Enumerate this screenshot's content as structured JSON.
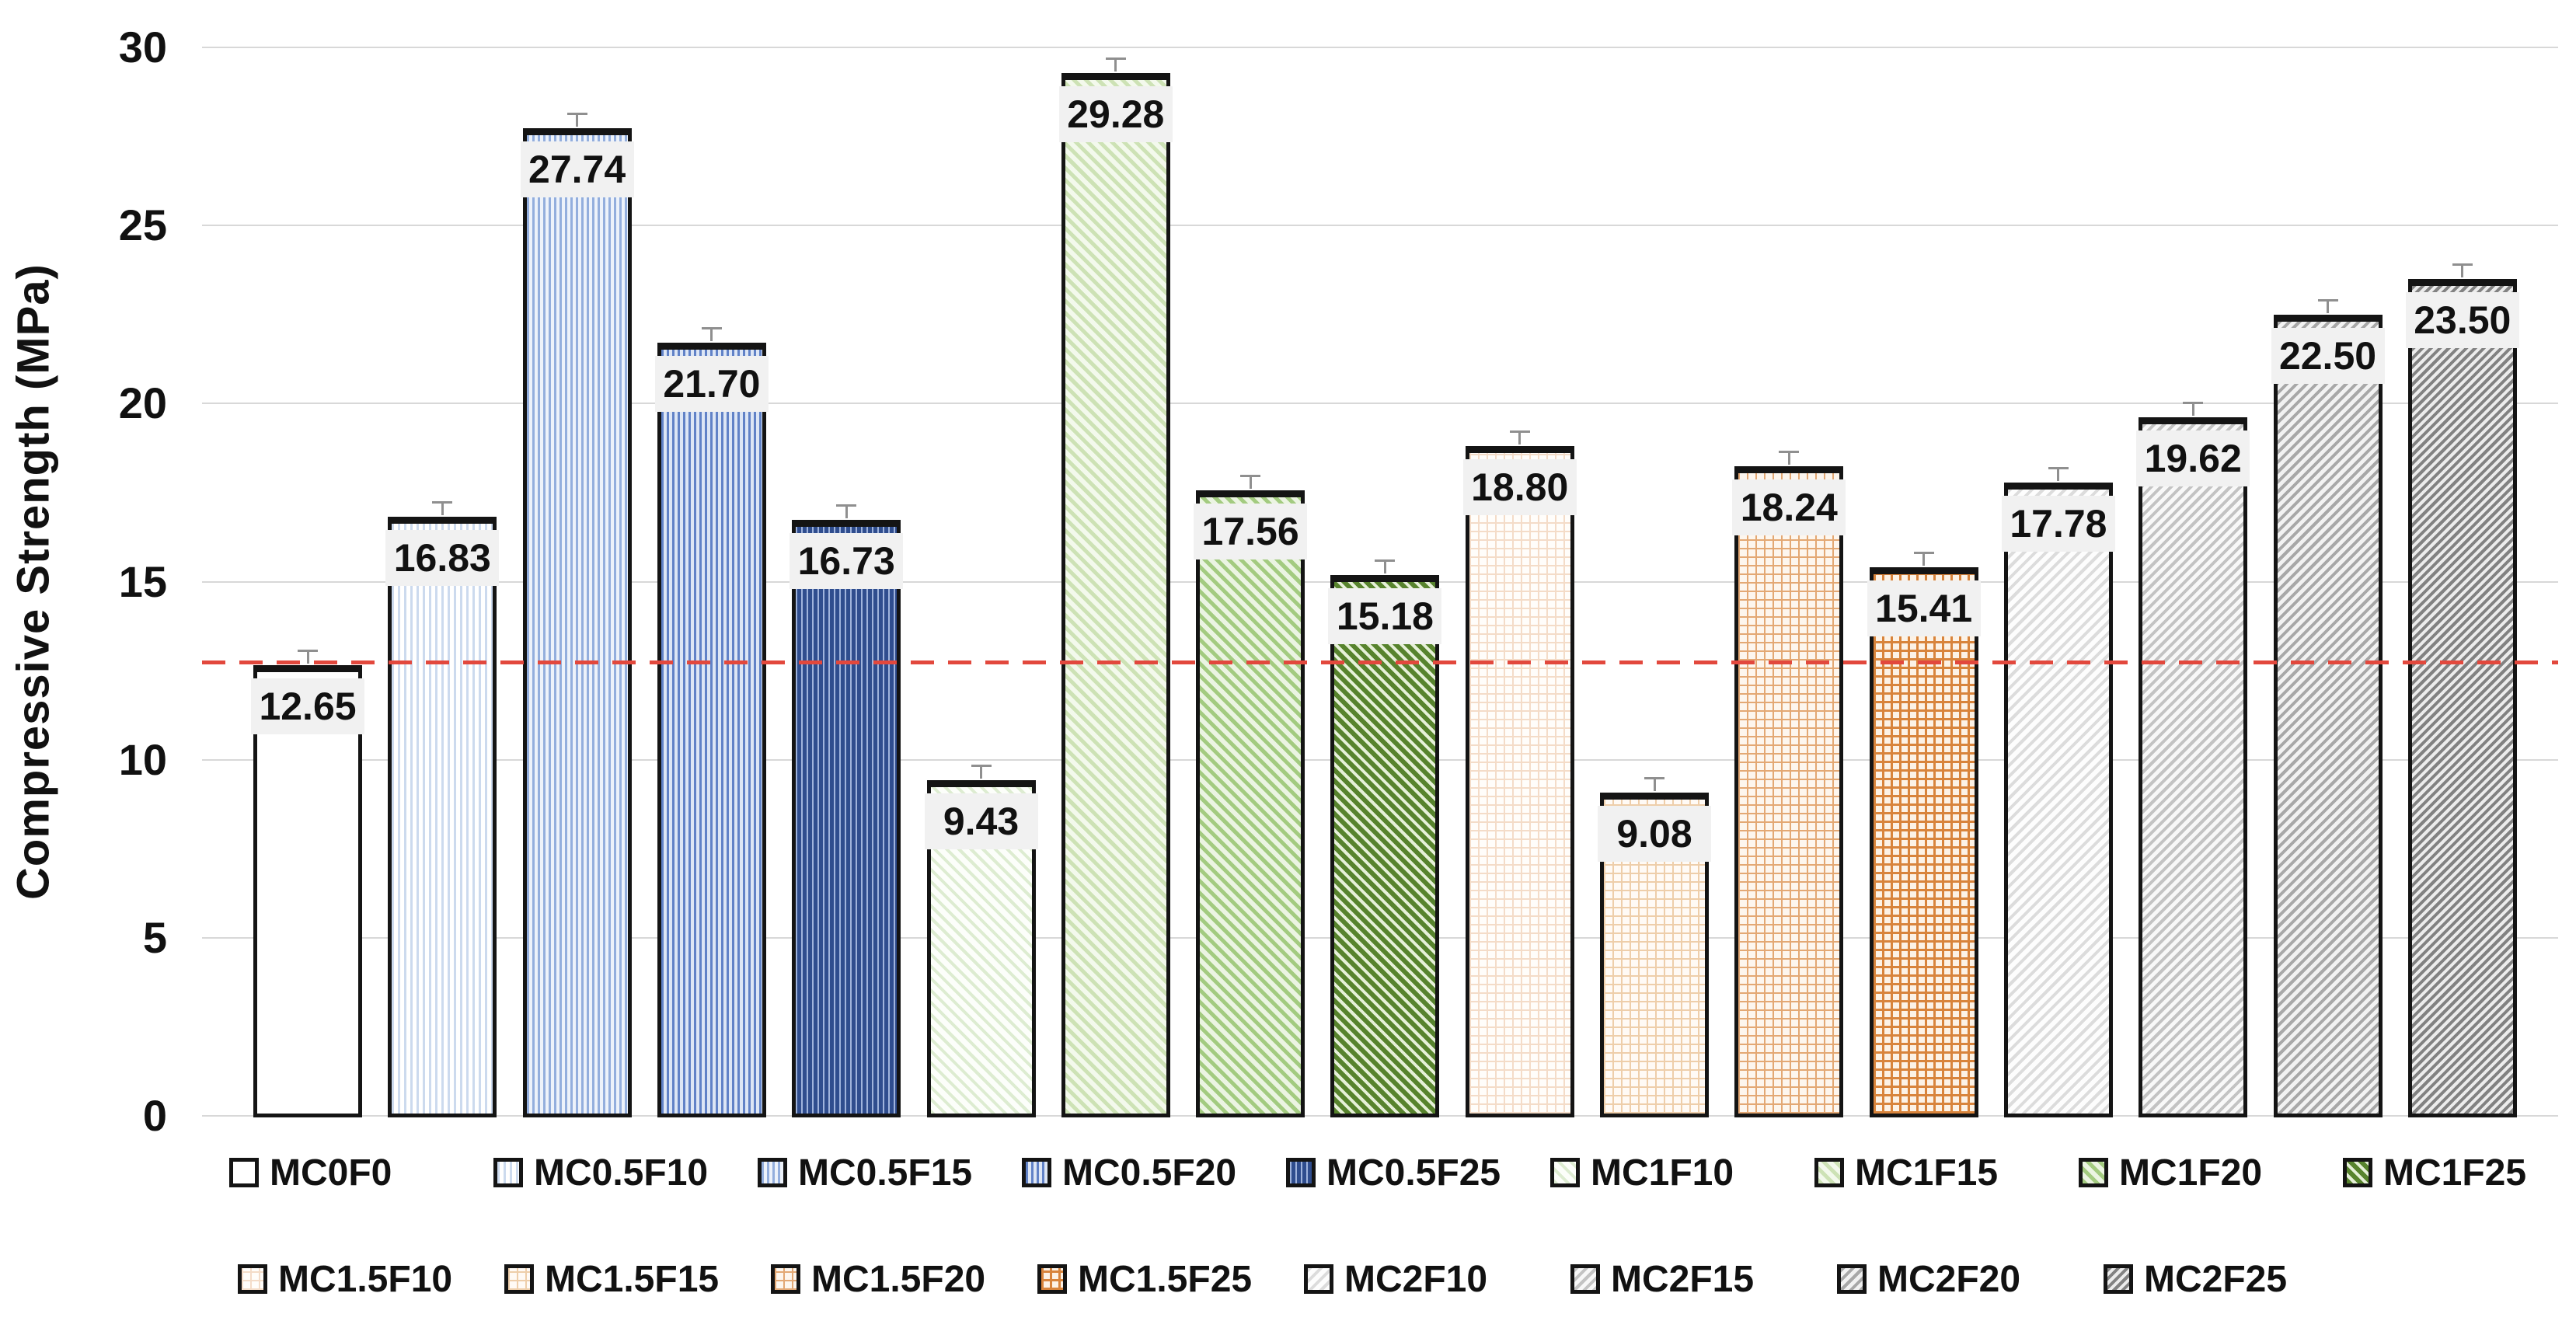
{
  "chart_data": {
    "type": "bar",
    "title": "",
    "xlabel": "",
    "ylabel": "Compressive Strength (MPa)",
    "ylim": [
      0,
      30
    ],
    "yticks": [
      0,
      5,
      10,
      15,
      20,
      25,
      30
    ],
    "grid": true,
    "legend_position": "bottom-two-rows",
    "has_error_whiskers": true,
    "reference_line": {
      "value": 12.75,
      "color": "#E2483D",
      "style": "dashed"
    },
    "categories": [
      "MC0F0",
      "MC0.5F10",
      "MC0.5F15",
      "MC0.5F20",
      "MC0.5F25",
      "MC1F10",
      "MC1F15",
      "MC1F20",
      "MC1F25",
      "MC1.5F10",
      "MC1.5F15",
      "MC1.5F20",
      "MC1.5F25",
      "MC2F10",
      "MC2F15",
      "MC2F20",
      "MC2F25"
    ],
    "values": [
      12.65,
      16.83,
      27.74,
      21.7,
      16.73,
      9.43,
      29.28,
      17.56,
      15.18,
      18.8,
      9.08,
      18.24,
      15.41,
      17.78,
      19.62,
      22.5,
      23.5
    ],
    "value_labels": [
      "12.65",
      "16.83",
      "27.74",
      "21.70",
      "16.73",
      "9.43",
      "29.28",
      "17.56",
      "15.18",
      "18.80",
      "9.08",
      "18.24",
      "15.41",
      "17.78",
      "19.62",
      "22.50",
      "23.50"
    ],
    "series": [
      {
        "label": "MC0F0",
        "value": 12.65,
        "value_label": "12.65",
        "pattern": {
          "kind": "solid",
          "fg": "#ffffff",
          "bg": "#ffffff",
          "t": 0,
          "pitch": 0
        }
      },
      {
        "label": "MC0.5F10",
        "value": 16.83,
        "value_label": "16.83",
        "pattern": {
          "kind": "vstripe",
          "fg": "#ccdaee",
          "bg": "#ffffff",
          "t": 3,
          "pitch": 8
        }
      },
      {
        "label": "MC0.5F15",
        "value": 27.74,
        "value_label": "27.74",
        "pattern": {
          "kind": "vstripe",
          "fg": "#93aedd",
          "bg": "#edf2fa",
          "t": 3,
          "pitch": 7
        }
      },
      {
        "label": "MC0.5F20",
        "value": 21.7,
        "value_label": "21.70",
        "pattern": {
          "kind": "vstripe",
          "fg": "#6182c7",
          "bg": "#dde6f5",
          "t": 3,
          "pitch": 7
        }
      },
      {
        "label": "MC0.5F25",
        "value": 16.73,
        "value_label": "16.73",
        "pattern": {
          "kind": "vstripe",
          "fg": "#9fb3dc",
          "bg": "#2f4d8e",
          "t": 2,
          "pitch": 7
        }
      },
      {
        "label": "MC1F10",
        "value": 9.43,
        "value_label": "9.43",
        "pattern": {
          "kind": "diag-up",
          "fg": "#ddecd1",
          "bg": "#fcfefa",
          "t": 4,
          "pitch": 11
        }
      },
      {
        "label": "MC1F15",
        "value": 29.28,
        "value_label": "29.28",
        "pattern": {
          "kind": "diag-up",
          "fg": "#cde2b5",
          "bg": "#f3f9ec",
          "t": 5,
          "pitch": 11
        }
      },
      {
        "label": "MC1F20",
        "value": 17.56,
        "value_label": "17.56",
        "pattern": {
          "kind": "diag-up",
          "fg": "#a3cb80",
          "bg": "#ebf4e2",
          "t": 5,
          "pitch": 11
        }
      },
      {
        "label": "MC1F25",
        "value": 15.18,
        "value_label": "15.18",
        "pattern": {
          "kind": "diag-up",
          "fg": "#57832d",
          "bg": "#e6f0d8",
          "t": 6,
          "pitch": 10
        }
      },
      {
        "label": "MC1.5F10",
        "value": 18.8,
        "value_label": "18.80",
        "pattern": {
          "kind": "grid",
          "fg": "#f4dcc8",
          "bg": "#fffdfa",
          "t": 2,
          "pitch": 11
        }
      },
      {
        "label": "MC1.5F15",
        "value": 9.08,
        "value_label": "9.08",
        "pattern": {
          "kind": "grid",
          "fg": "#eeceaa",
          "bg": "#fffaf5",
          "t": 2,
          "pitch": 11
        }
      },
      {
        "label": "MC1.5F20",
        "value": 18.24,
        "value_label": "18.24",
        "pattern": {
          "kind": "grid",
          "fg": "#e3a874",
          "bg": "#fdf6ee",
          "t": 2,
          "pitch": 11
        }
      },
      {
        "label": "MC1.5F25",
        "value": 15.41,
        "value_label": "15.41",
        "pattern": {
          "kind": "grid",
          "fg": "#d8843c",
          "bg": "#fcf2e6",
          "t": 3,
          "pitch": 11
        }
      },
      {
        "label": "MC2F10",
        "value": 17.78,
        "value_label": "17.78",
        "pattern": {
          "kind": "diag-down",
          "fg": "#dcdcdc",
          "bg": "#fdfdfd",
          "t": 4,
          "pitch": 10
        }
      },
      {
        "label": "MC2F15",
        "value": 19.62,
        "value_label": "19.62",
        "pattern": {
          "kind": "diag-down",
          "fg": "#c3c3c3",
          "bg": "#f8f8f8",
          "t": 4,
          "pitch": 9
        }
      },
      {
        "label": "MC2F20",
        "value": 22.5,
        "value_label": "22.50",
        "pattern": {
          "kind": "diag-down",
          "fg": "#a8a8a8",
          "bg": "#f2f2f2",
          "t": 4,
          "pitch": 9
        }
      },
      {
        "label": "MC2F25",
        "value": 23.5,
        "value_label": "23.50",
        "pattern": {
          "kind": "diag-down",
          "fg": "#828282",
          "bg": "#ececec",
          "t": 4,
          "pitch": 8
        }
      }
    ],
    "legend_rows": [
      [
        "MC0F0",
        "MC0.5F10",
        "MC0.5F15",
        "MC0.5F20",
        "MC0.5F25",
        "MC1F10",
        "MC1F15",
        "MC1F20",
        "MC1F25"
      ],
      [
        "MC1.5F10",
        "MC1.5F15",
        "MC1.5F20",
        "MC1.5F25",
        "MC2F10",
        "MC2F15",
        "MC2F20",
        "MC2F25"
      ]
    ]
  },
  "colors": {
    "bar_border": "#141414",
    "gridline": "#d8d8d8",
    "label_box_bg": "#f1f1f1",
    "text": "#111111",
    "whisker": "#8f8f8f",
    "background": "#ffffff"
  }
}
